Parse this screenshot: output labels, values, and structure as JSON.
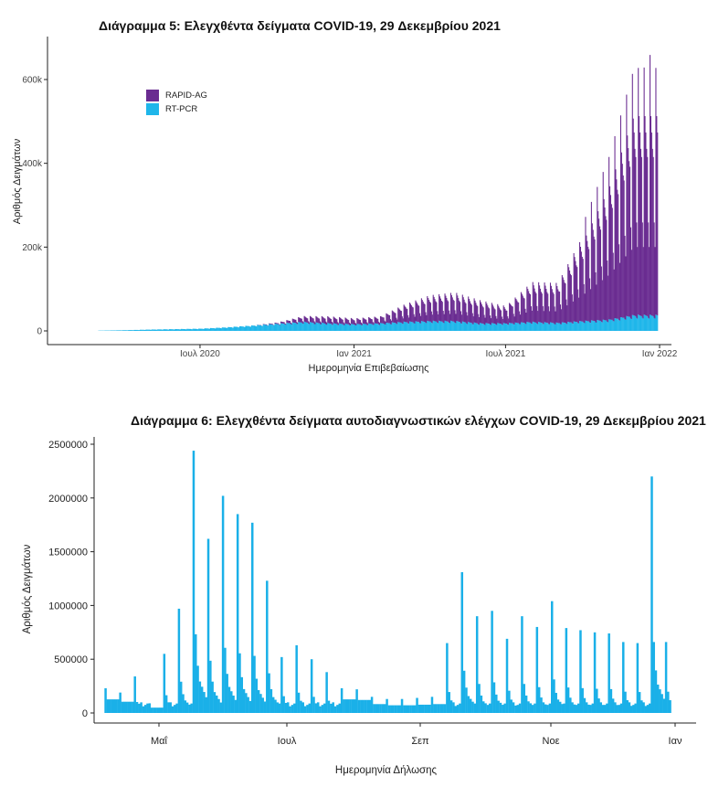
{
  "charts": [
    {
      "title": "Διάγραμμα 5: Ελεγχθέντα δείγματα COVID-19, 29 Δεκεμβρίου 2021",
      "xlabel": "Ημερομηνία Επιβεβαίωσης",
      "ylabel": "Αριθμός Δειγμάτων",
      "legend": [
        {
          "label": "RAPID-AG",
          "color": "#6a2c91"
        },
        {
          "label": "RT-PCR",
          "color": "#1fb6ea"
        }
      ]
    },
    {
      "title": "Διάγραμμα 6: Ελεγχθέντα δείγματα αυτοδιαγνωστικών ελέγχων COVID-19, 29 Δεκεμβρίου 2021",
      "xlabel": "Ημερομηνία Δήλωσης",
      "ylabel": "Αριθμός Δειγμάτων"
    }
  ],
  "chart_data": [
    {
      "type": "bar",
      "stacked": true,
      "title": "Διάγραμμα 5: Ελεγχθέντα δείγματα COVID-19, 29 Δεκεμβρίου 2021",
      "xlabel": "Ημερομηνία Επιβεβαίωσης",
      "ylabel": "Αριθμός Δειγμάτων",
      "x_ticks": [
        "Ιουλ 2020",
        "Ιαν 2021",
        "Ιουλ 2021",
        "Ιαν 2022"
      ],
      "y_ticks": [
        "0",
        "200k",
        "400k",
        "600k"
      ],
      "ylim": [
        0,
        680000
      ],
      "legend_position": "top-left",
      "x": [
        "2020-03",
        "2020-04",
        "2020-05",
        "2020-06",
        "2020-07",
        "2020-08",
        "2020-09",
        "2020-10",
        "2020-11",
        "2020-12",
        "2021-01",
        "2021-02",
        "2021-03",
        "2021-04",
        "2021-05",
        "2021-06",
        "2021-07",
        "2021-08",
        "2021-09",
        "2021-10",
        "2021-11",
        "2021-12"
      ],
      "series": [
        {
          "name": "RAPID-AG",
          "color": "#6a2c91",
          "values": [
            0,
            0,
            0,
            0,
            0,
            0,
            0,
            2000,
            10000,
            12000,
            10000,
            12000,
            30000,
            45000,
            50000,
            40000,
            30000,
            70000,
            70000,
            150000,
            250000,
            380000
          ]
        },
        {
          "name": "RT-PCR",
          "color": "#1fb6ea",
          "values": [
            500,
            1500,
            3000,
            4000,
            5000,
            8000,
            12000,
            16000,
            20000,
            17000,
            15000,
            17000,
            20000,
            22000,
            22000,
            17000,
            17000,
            20000,
            18000,
            22000,
            25000,
            35000
          ]
        }
      ]
    },
    {
      "type": "bar",
      "title": "Διάγραμμα 6: Ελεγχθέντα δείγματα αυτοδιαγνωστικών ελέγχων COVID-19, 29 Δεκεμβρίου 2021",
      "xlabel": "Ημερομηνία Δήλωσης",
      "ylabel": "Αριθμός Δειγμάτων",
      "color": "#1ab0e8",
      "x_ticks": [
        "Μαΐ",
        "Ιουλ",
        "Σεπ",
        "Νοε",
        "Ιαν"
      ],
      "y_ticks": [
        "0",
        "500000",
        "1000000",
        "1500000",
        "2000000",
        "2500000"
      ],
      "ylim": [
        0,
        2550000
      ],
      "weekly_peaks": [
        {
          "week_of": "2021-04-05",
          "value": 230000
        },
        {
          "week_of": "2021-04-12",
          "value": 190000
        },
        {
          "week_of": "2021-04-19",
          "value": 340000
        },
        {
          "week_of": "2021-04-26",
          "value": 90000
        },
        {
          "week_of": "2021-05-03",
          "value": 550000
        },
        {
          "week_of": "2021-05-10",
          "value": 970000
        },
        {
          "week_of": "2021-05-17",
          "value": 2440000
        },
        {
          "week_of": "2021-05-24",
          "value": 1620000
        },
        {
          "week_of": "2021-05-31",
          "value": 2020000
        },
        {
          "week_of": "2021-06-07",
          "value": 1850000
        },
        {
          "week_of": "2021-06-14",
          "value": 1770000
        },
        {
          "week_of": "2021-06-21",
          "value": 1230000
        },
        {
          "week_of": "2021-06-28",
          "value": 520000
        },
        {
          "week_of": "2021-07-05",
          "value": 630000
        },
        {
          "week_of": "2021-07-12",
          "value": 500000
        },
        {
          "week_of": "2021-07-19",
          "value": 380000
        },
        {
          "week_of": "2021-07-26",
          "value": 230000
        },
        {
          "week_of": "2021-08-02",
          "value": 220000
        },
        {
          "week_of": "2021-08-09",
          "value": 150000
        },
        {
          "week_of": "2021-08-16",
          "value": 130000
        },
        {
          "week_of": "2021-08-23",
          "value": 130000
        },
        {
          "week_of": "2021-08-30",
          "value": 140000
        },
        {
          "week_of": "2021-09-06",
          "value": 150000
        },
        {
          "week_of": "2021-09-13",
          "value": 650000
        },
        {
          "week_of": "2021-09-20",
          "value": 1310000
        },
        {
          "week_of": "2021-09-27",
          "value": 900000
        },
        {
          "week_of": "2021-10-04",
          "value": 950000
        },
        {
          "week_of": "2021-10-11",
          "value": 690000
        },
        {
          "week_of": "2021-10-18",
          "value": 900000
        },
        {
          "week_of": "2021-10-25",
          "value": 800000
        },
        {
          "week_of": "2021-11-01",
          "value": 1040000
        },
        {
          "week_of": "2021-11-08",
          "value": 790000
        },
        {
          "week_of": "2021-11-15",
          "value": 770000
        },
        {
          "week_of": "2021-11-22",
          "value": 750000
        },
        {
          "week_of": "2021-11-29",
          "value": 740000
        },
        {
          "week_of": "2021-12-06",
          "value": 660000
        },
        {
          "week_of": "2021-12-13",
          "value": 650000
        },
        {
          "week_of": "2021-12-20",
          "value": 2200000
        },
        {
          "week_of": "2021-12-27",
          "value": 660000
        }
      ]
    }
  ]
}
